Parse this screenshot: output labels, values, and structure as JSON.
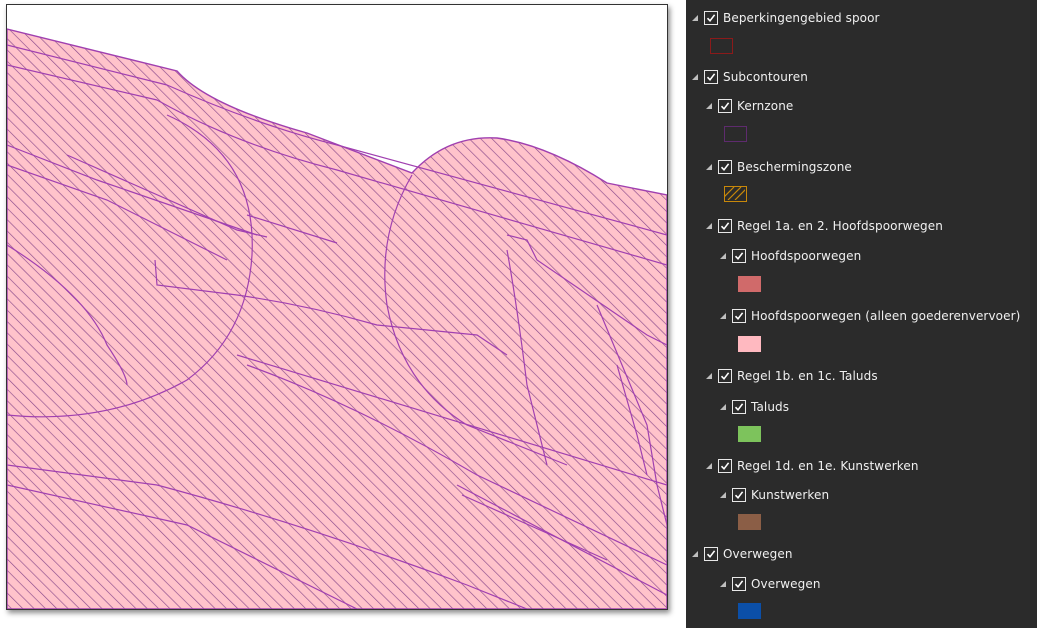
{
  "toc": {
    "layers": [
      {
        "id": "beperkingengebied",
        "label": "Beperkingengebied spoor",
        "checked": true,
        "expanded": true,
        "symbol": {
          "type": "outline",
          "stroke": "#8b1a1a",
          "fill": "none"
        }
      },
      {
        "id": "subcontouren",
        "label": "Subcontouren",
        "checked": true,
        "expanded": true
      },
      {
        "id": "kernzone",
        "label": "Kernzone",
        "checked": true,
        "expanded": true,
        "symbol": {
          "type": "outline",
          "stroke": "#5e2b6e",
          "fill": "none"
        }
      },
      {
        "id": "beschermingszone",
        "label": "Beschermingszone",
        "checked": true,
        "expanded": true,
        "symbol": {
          "type": "hatch",
          "stroke": "#c8880a",
          "fill": "none"
        }
      },
      {
        "id": "regel1a",
        "label": "Regel 1a. en 2. Hoofdspoorwegen",
        "checked": true,
        "expanded": true
      },
      {
        "id": "hoofdspoorwegen",
        "label": "Hoofdspoorwegen",
        "checked": true,
        "expanded": true,
        "symbol": {
          "type": "fill",
          "fill": "#d06a6a"
        }
      },
      {
        "id": "hoofdspoorwegen-goederen",
        "label": "Hoofdspoorwegen (alleen goederenvervoer)",
        "checked": true,
        "expanded": true,
        "symbol": {
          "type": "fill",
          "fill": "#ffb9c0"
        }
      },
      {
        "id": "regel1b",
        "label": "Regel 1b. en 1c. Taluds",
        "checked": true,
        "expanded": true
      },
      {
        "id": "taluds",
        "label": "Taluds",
        "checked": true,
        "expanded": true,
        "symbol": {
          "type": "fill",
          "fill": "#7dc35c"
        }
      },
      {
        "id": "regel1d",
        "label": "Regel 1d. en 1e. Kunstwerken",
        "checked": true,
        "expanded": true
      },
      {
        "id": "kunstwerken",
        "label": "Kunstwerken",
        "checked": true,
        "expanded": true,
        "symbol": {
          "type": "fill",
          "fill": "#8b5e46"
        }
      },
      {
        "id": "overwegen-group",
        "label": "Overwegen",
        "checked": true,
        "expanded": true
      },
      {
        "id": "overwegen",
        "label": "Overwegen",
        "checked": true,
        "expanded": true,
        "symbol": {
          "type": "fill",
          "fill": "#0b4fa8"
        }
      }
    ]
  },
  "map": {
    "colors": {
      "band_fill": "#ffc3cb",
      "hatch": "#8b4a8b",
      "outline": "#a040b0",
      "background": "#ffffff"
    }
  }
}
